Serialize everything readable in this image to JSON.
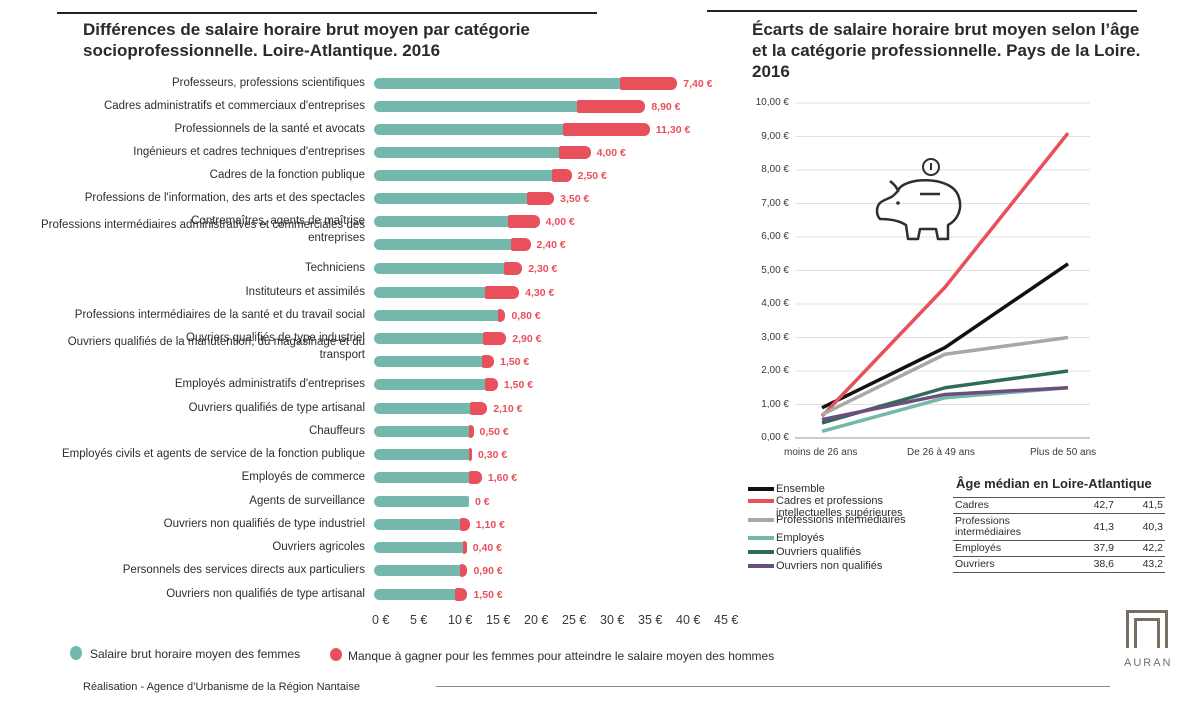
{
  "left_title": "Différences de salaire horaire brut moyen par catégorie socioprofessionnelle. Loire-Atlantique. 2016",
  "right_title": "Écarts de salaire horaire brut moyen selon l’âge et la catégorie professionnelle. Pays de la Loire. 2016",
  "legend_women": "Salaire brut horaire moyen des femmes",
  "legend_gap": "Manque à gagner pour les femmes pour atteindre le salaire moyen des hommes",
  "footer": "Réalisation - Agence d’Urbanisme de la Région Nantaise",
  "logo_text": "AURAN",
  "median_table": {
    "title": "Âge médian en Loire-Atlantique",
    "rows": [
      {
        "label": "Cadres",
        "v1": "42,7",
        "v2": "41,5"
      },
      {
        "label": "Professions intermédiaires",
        "v1": "41,3",
        "v2": "40,3"
      },
      {
        "label": "Employés",
        "v1": "37,9",
        "v2": "42,2"
      },
      {
        "label": "Ouvriers",
        "v1": "38,6",
        "v2": "43,2"
      }
    ]
  },
  "colors": {
    "women": "#73b8ab",
    "gap": "#e8505b",
    "title_rule": "#222222"
  },
  "chart_data": [
    {
      "type": "bar",
      "orientation": "horizontal",
      "stacked": true,
      "categories": [
        "Professeurs, professions scientifiques",
        "Cadres administratifs et commerciaux d'entreprises",
        "Professionnels de la santé et avocats",
        "Ingénieurs et cadres techniques d'entreprises",
        "Cadres de la fonction publique",
        "Professions de l'information, des arts et des spectacles",
        "Contremaîtres, agents de maîtrise",
        "Professions intermédiaires administratives et commerciales des entreprises",
        "Techniciens",
        "Instituteurs et assimilés",
        "Professions intermédiaires de la santé et du travail social",
        "Ouvriers qualifiés de type industriel",
        "Ouvriers qualifiés de la manutention, du magasinage et du transport",
        "Employés administratifs d'entreprises",
        "Ouvriers qualifiés de type artisanal",
        "Chauffeurs",
        "Employés civils et agents de service de la fonction publique",
        "Employés de commerce",
        "Agents de surveillance",
        "Ouvriers non qualifiés de type industriel",
        "Ouvriers agricoles",
        "Personnels des services directs aux particuliers",
        "Ouvriers non qualifiés de type artisanal"
      ],
      "series": [
        {
          "name": "Salaire brut horaire moyen des femmes",
          "values": [
            32.5,
            26.8,
            25.0,
            24.5,
            23.5,
            20.2,
            17.8,
            18.2,
            17.2,
            14.8,
            16.5,
            14.5,
            14.3,
            14.8,
            12.8,
            12.6,
            12.6,
            12.6,
            12.5,
            11.5,
            11.8,
            11.4,
            10.8
          ]
        },
        {
          "name": "Manque à gagner pour les femmes pour atteindre le salaire moyen des hommes",
          "values": [
            7.4,
            8.9,
            11.3,
            4.0,
            2.5,
            3.5,
            4.0,
            2.4,
            2.3,
            4.3,
            0.8,
            2.9,
            1.5,
            1.5,
            2.1,
            0.5,
            0.3,
            1.6,
            0,
            1.1,
            0.4,
            0.9,
            1.5
          ]
        }
      ],
      "gap_labels": [
        "7,40 €",
        "8,90 €",
        "11,30 €",
        "4,00 €",
        "2,50 €",
        "3,50 €",
        "4,00 €",
        "2,40 €",
        "2,30 €",
        "4,30 €",
        "0,80 €",
        "2,90 €",
        "1,50 €",
        "1,50 €",
        "2,10 €",
        "0,50 €",
        "0,30 €",
        "1,60 €",
        "0 €",
        "1,10 €",
        "0,40 €",
        "0,90 €",
        "1,50 €"
      ],
      "x_ticks": [
        "0 €",
        "5 €",
        "10 €",
        "15 €",
        "20 €",
        "25 €",
        "30 €",
        "35 €",
        "40 €",
        "45 €"
      ],
      "xlim": [
        0,
        45
      ]
    },
    {
      "type": "line",
      "categories": [
        "moins de 26 ans",
        "De 26 à 49 ans",
        "Plus de 50 ans"
      ],
      "y_ticks": [
        "0,00 €",
        "1,00 €",
        "2,00 €",
        "3,00 €",
        "4,00 €",
        "5,00 €",
        "6,00 €",
        "7,00 €",
        "8,00 €",
        "9,00 €",
        "10,00 €"
      ],
      "ylim": [
        0,
        10
      ],
      "grid": true,
      "series": [
        {
          "name": "Ensemble",
          "color": "#111111",
          "values": [
            0.9,
            2.7,
            5.2
          ]
        },
        {
          "name": "Cadres et professions intellectuelles supérieures",
          "color": "#e8505b",
          "values": [
            0.65,
            4.5,
            9.1
          ]
        },
        {
          "name": "Professions intermédiaires",
          "color": "#a8a8a8",
          "values": [
            0.7,
            2.5,
            3.0
          ]
        },
        {
          "name": "Employés",
          "color": "#73b8ab",
          "values": [
            0.2,
            1.2,
            1.5
          ]
        },
        {
          "name": "Ouvriers qualifiés",
          "color": "#2e6b5a",
          "values": [
            0.45,
            1.5,
            2.0
          ]
        },
        {
          "name": "Ouvriers non qualifiés",
          "color": "#6a4f7e",
          "values": [
            0.55,
            1.3,
            1.5
          ]
        }
      ]
    }
  ]
}
